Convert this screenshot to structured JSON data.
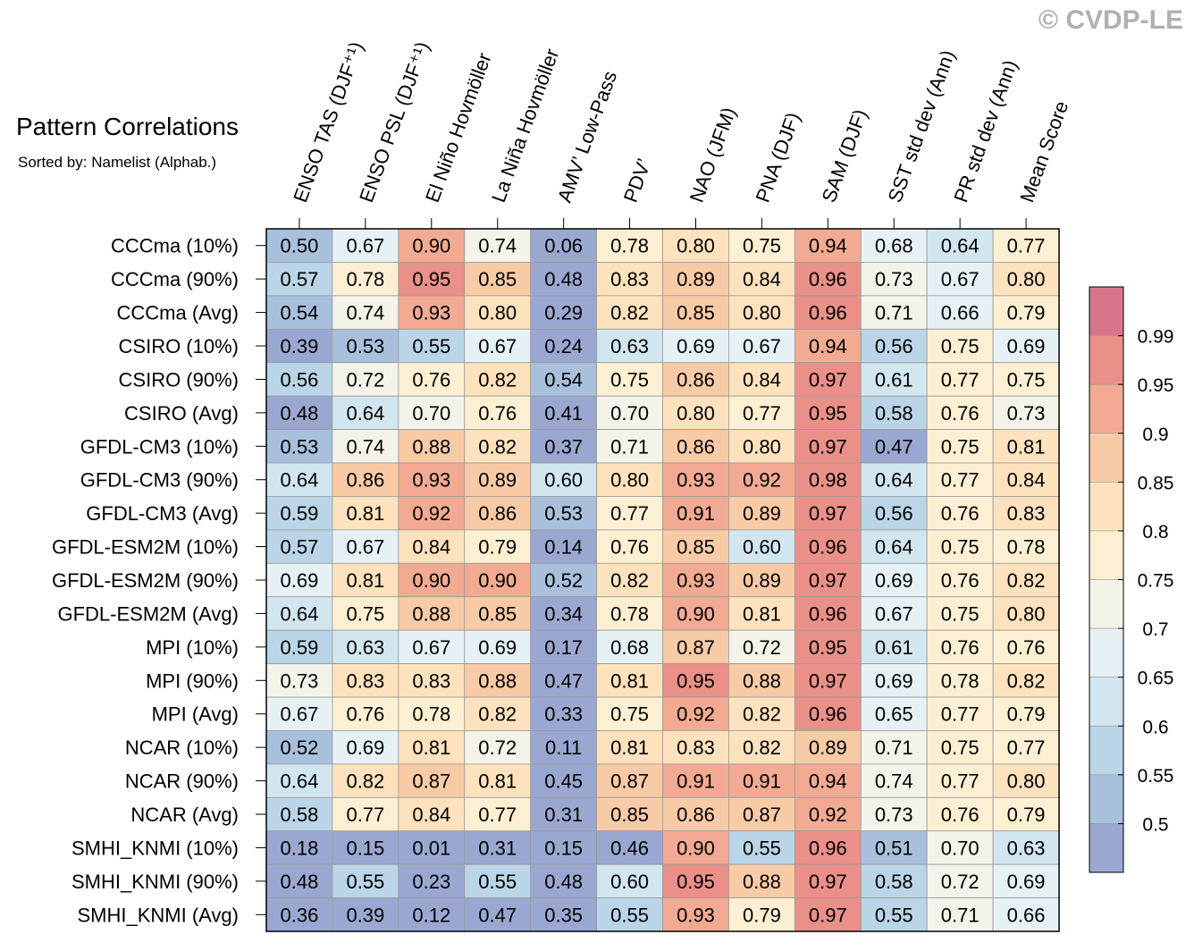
{
  "copyright": "© CVDP-LE",
  "chart_data": {
    "type": "heatmap",
    "title": "Pattern Correlations",
    "subtitle": "Sorted by: Namelist (Alphab.)",
    "columns": [
      "ENSO TAS (DJF⁺¹)",
      "ENSO PSL (DJF⁺¹)",
      "El Niño Hovmöller",
      "La Niña Hovmöller",
      "AMV’ Low-Pass",
      "PDV’",
      "NAO (JFM)",
      "PNA (DJF)",
      "SAM (DJF)",
      "SST std dev (Ann)",
      "PR std dev (Ann)",
      "Mean Score"
    ],
    "rows": [
      "CCCma (10%)",
      "CCCma (90%)",
      "CCCma (Avg)",
      "CSIRO (10%)",
      "CSIRO (90%)",
      "CSIRO (Avg)",
      "GFDL-CM3 (10%)",
      "GFDL-CM3 (90%)",
      "GFDL-CM3 (Avg)",
      "GFDL-ESM2M (10%)",
      "GFDL-ESM2M (90%)",
      "GFDL-ESM2M (Avg)",
      "MPI (10%)",
      "MPI (90%)",
      "MPI (Avg)",
      "NCAR (10%)",
      "NCAR (90%)",
      "NCAR (Avg)",
      "SMHI_KNMI (10%)",
      "SMHI_KNMI (90%)",
      "SMHI_KNMI (Avg)"
    ],
    "values": [
      [
        "0.50",
        "0.67",
        "0.90",
        "0.74",
        "0.06",
        "0.78",
        "0.80",
        "0.75",
        "0.94",
        "0.68",
        "0.64",
        "0.77"
      ],
      [
        "0.57",
        "0.78",
        "0.95",
        "0.85",
        "0.48",
        "0.83",
        "0.89",
        "0.84",
        "0.96",
        "0.73",
        "0.67",
        "0.80"
      ],
      [
        "0.54",
        "0.74",
        "0.93",
        "0.80",
        "0.29",
        "0.82",
        "0.85",
        "0.80",
        "0.96",
        "0.71",
        "0.66",
        "0.79"
      ],
      [
        "0.39",
        "0.53",
        "0.55",
        "0.67",
        "0.24",
        "0.63",
        "0.69",
        "0.67",
        "0.94",
        "0.56",
        "0.75",
        "0.69"
      ],
      [
        "0.56",
        "0.72",
        "0.76",
        "0.82",
        "0.54",
        "0.75",
        "0.86",
        "0.84",
        "0.97",
        "0.61",
        "0.77",
        "0.75"
      ],
      [
        "0.48",
        "0.64",
        "0.70",
        "0.76",
        "0.41",
        "0.70",
        "0.80",
        "0.77",
        "0.95",
        "0.58",
        "0.76",
        "0.73"
      ],
      [
        "0.53",
        "0.74",
        "0.88",
        "0.82",
        "0.37",
        "0.71",
        "0.86",
        "0.80",
        "0.97",
        "0.47",
        "0.75",
        "0.81"
      ],
      [
        "0.64",
        "0.86",
        "0.93",
        "0.89",
        "0.60",
        "0.80",
        "0.93",
        "0.92",
        "0.98",
        "0.64",
        "0.77",
        "0.84"
      ],
      [
        "0.59",
        "0.81",
        "0.92",
        "0.86",
        "0.53",
        "0.77",
        "0.91",
        "0.89",
        "0.97",
        "0.56",
        "0.76",
        "0.83"
      ],
      [
        "0.57",
        "0.67",
        "0.84",
        "0.79",
        "0.14",
        "0.76",
        "0.85",
        "0.60",
        "0.96",
        "0.64",
        "0.75",
        "0.78"
      ],
      [
        "0.69",
        "0.81",
        "0.90",
        "0.90",
        "0.52",
        "0.82",
        "0.93",
        "0.89",
        "0.97",
        "0.69",
        "0.76",
        "0.82"
      ],
      [
        "0.64",
        "0.75",
        "0.88",
        "0.85",
        "0.34",
        "0.78",
        "0.90",
        "0.81",
        "0.96",
        "0.67",
        "0.75",
        "0.80"
      ],
      [
        "0.59",
        "0.63",
        "0.67",
        "0.69",
        "0.17",
        "0.68",
        "0.87",
        "0.72",
        "0.95",
        "0.61",
        "0.76",
        "0.76"
      ],
      [
        "0.73",
        "0.83",
        "0.83",
        "0.88",
        "0.47",
        "0.81",
        "0.95",
        "0.88",
        "0.97",
        "0.69",
        "0.78",
        "0.82"
      ],
      [
        "0.67",
        "0.76",
        "0.78",
        "0.82",
        "0.33",
        "0.75",
        "0.92",
        "0.82",
        "0.96",
        "0.65",
        "0.77",
        "0.79"
      ],
      [
        "0.52",
        "0.69",
        "0.81",
        "0.72",
        "0.11",
        "0.81",
        "0.83",
        "0.82",
        "0.89",
        "0.71",
        "0.75",
        "0.77"
      ],
      [
        "0.64",
        "0.82",
        "0.87",
        "0.81",
        "0.45",
        "0.87",
        "0.91",
        "0.91",
        "0.94",
        "0.74",
        "0.77",
        "0.80"
      ],
      [
        "0.58",
        "0.77",
        "0.84",
        "0.77",
        "0.31",
        "0.85",
        "0.86",
        "0.87",
        "0.92",
        "0.73",
        "0.76",
        "0.79"
      ],
      [
        "0.18",
        "0.15",
        "0.01",
        "0.31",
        "0.15",
        "0.46",
        "0.90",
        "0.55",
        "0.96",
        "0.51",
        "0.70",
        "0.63"
      ],
      [
        "0.48",
        "0.55",
        "0.23",
        "0.55",
        "0.48",
        "0.60",
        "0.95",
        "0.88",
        "0.97",
        "0.58",
        "0.72",
        "0.69"
      ],
      [
        "0.36",
        "0.39",
        "0.12",
        "0.47",
        "0.35",
        "0.55",
        "0.93",
        "0.79",
        "0.97",
        "0.55",
        "0.71",
        "0.66"
      ]
    ],
    "colorbar": {
      "levels": [
        "0.5",
        "0.55",
        "0.6",
        "0.65",
        "0.7",
        "0.75",
        "0.8",
        "0.85",
        "0.9",
        "0.95",
        "0.99"
      ],
      "colors": [
        "#9aa8d1",
        "#a9c0dd",
        "#bad5e7",
        "#d2e6f0",
        "#e6f1f6",
        "#f4f3ea",
        "#fdf0d2",
        "#fde2bd",
        "#f9caa6",
        "#f2aa92",
        "#ea9088",
        "#d9758b"
      ]
    }
  }
}
